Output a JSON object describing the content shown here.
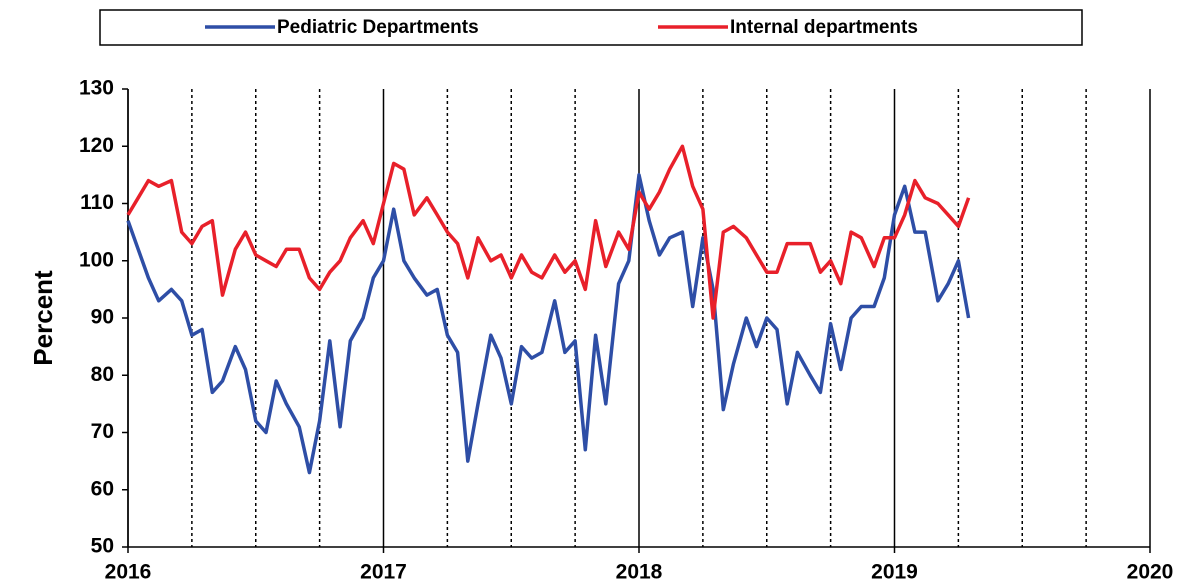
{
  "chart_data": {
    "type": "line",
    "ylabel": "Percent",
    "x": [
      2016.0,
      2016.04,
      2016.08,
      2016.12,
      2016.17,
      2016.21,
      2016.25,
      2016.29,
      2016.33,
      2016.37,
      2016.42,
      2016.46,
      2016.5,
      2016.54,
      2016.58,
      2016.62,
      2016.67,
      2016.71,
      2016.75,
      2016.79,
      2016.83,
      2016.87,
      2016.92,
      2016.96,
      2017.0,
      2017.04,
      2017.08,
      2017.12,
      2017.17,
      2017.21,
      2017.25,
      2017.29,
      2017.33,
      2017.37,
      2017.42,
      2017.46,
      2017.5,
      2017.54,
      2017.58,
      2017.62,
      2017.67,
      2017.71,
      2017.75,
      2017.79,
      2017.83,
      2017.87,
      2017.92,
      2017.96,
      2018.0,
      2018.04,
      2018.08,
      2018.12,
      2018.17,
      2018.21,
      2018.25,
      2018.29,
      2018.33,
      2018.37,
      2018.42,
      2018.46,
      2018.5,
      2018.54,
      2018.58,
      2018.62,
      2018.67,
      2018.71,
      2018.75,
      2018.79,
      2018.83,
      2018.87,
      2018.92,
      2018.96,
      2019.0,
      2019.04,
      2019.08,
      2019.12,
      2019.17,
      2019.21,
      2019.25,
      2019.29
    ],
    "series": [
      {
        "name": "Pediatric Departments",
        "color": "#2e4ea6",
        "values": [
          107,
          102,
          97,
          93,
          95,
          93,
          87,
          88,
          77,
          79,
          85,
          81,
          72,
          70,
          79,
          75,
          71,
          63,
          72,
          86,
          71,
          86,
          90,
          97,
          100,
          109,
          100,
          97,
          94,
          95,
          87,
          84,
          65,
          75,
          87,
          83,
          75,
          85,
          83,
          84,
          93,
          84,
          86,
          67,
          87,
          75,
          96,
          100,
          115,
          107,
          101,
          104,
          105,
          92,
          104,
          95,
          74,
          82,
          90,
          85,
          90,
          88,
          75,
          84,
          80,
          77,
          89,
          81,
          90,
          92,
          92,
          97,
          108,
          113,
          105,
          105,
          93,
          96,
          100,
          90
        ]
      },
      {
        "name": "Internal departments",
        "color": "#e8202a",
        "values": [
          108,
          111,
          114,
          113,
          114,
          105,
          103,
          106,
          107,
          94,
          102,
          105,
          101,
          100,
          99,
          102,
          102,
          97,
          95,
          98,
          100,
          104,
          107,
          103,
          110,
          117,
          116,
          108,
          111,
          108,
          105,
          103,
          97,
          104,
          100,
          101,
          97,
          101,
          98,
          97,
          101,
          98,
          100,
          95,
          107,
          99,
          105,
          102,
          112,
          109,
          112,
          116,
          120,
          113,
          109,
          90,
          105,
          106,
          104,
          101,
          98,
          98,
          103,
          103,
          103,
          98,
          100,
          96,
          105,
          104,
          99,
          104,
          104,
          108,
          114,
          111,
          110,
          108,
          106,
          111
        ]
      }
    ],
    "xlim": [
      2016,
      2020
    ],
    "xticks": [
      2016,
      2017,
      2018,
      2019,
      2020
    ],
    "xminor_ticks": [
      2016.25,
      2016.5,
      2016.75,
      2017.25,
      2017.5,
      2017.75,
      2018.25,
      2018.5,
      2018.75,
      2019.25,
      2019.5,
      2019.75
    ],
    "ylim": [
      50,
      130
    ],
    "yticks": [
      50,
      60,
      70,
      80,
      90,
      100,
      110,
      120,
      130
    ],
    "legend": "top"
  }
}
